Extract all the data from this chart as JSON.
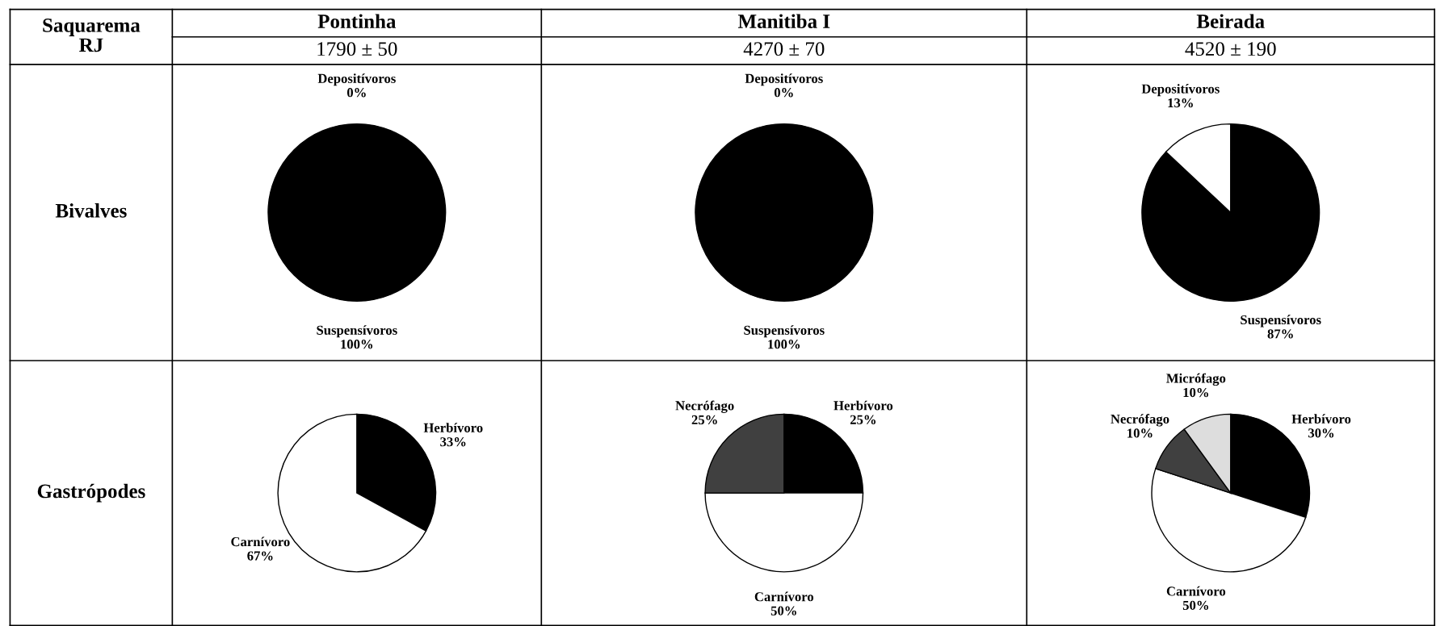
{
  "chart_data": [
    {
      "type": "pie",
      "title": "Pontinha",
      "subtitle": "1790 ± 50",
      "ylabel": "Bivalves",
      "annotations": [
        "Saquarema\nRJ"
      ],
      "categories": [
        "Suspensívoros",
        "Depositívoros"
      ],
      "values": [
        100,
        0
      ],
      "value_labels": [
        "100%",
        "0%"
      ],
      "colors": [
        "#000000",
        "#ffffff"
      ]
    },
    {
      "type": "pie",
      "title": "Manitiba I",
      "subtitle": "4270 ± 70",
      "categories": [
        "Suspensívoros",
        "Depositívoros"
      ],
      "values": [
        100,
        0
      ],
      "value_labels": [
        "100%",
        "0%"
      ],
      "colors": [
        "#000000",
        "#ffffff"
      ]
    },
    {
      "type": "pie",
      "title": "Beirada",
      "subtitle": "4520 ± 190",
      "categories": [
        "Suspensívoros",
        "Depositívoros"
      ],
      "values": [
        87,
        13
      ],
      "value_labels": [
        "87%",
        "13%"
      ],
      "colors": [
        "#000000",
        "#ffffff"
      ]
    },
    {
      "type": "pie",
      "ylabel": "Gastrópodes",
      "categories": [
        "Herbívoro",
        "Carnívoro"
      ],
      "values": [
        33,
        67
      ],
      "value_labels": [
        "33%",
        "67%"
      ],
      "colors": [
        "#000000",
        "#ffffff"
      ]
    },
    {
      "type": "pie",
      "categories": [
        "Herbívoro",
        "Carnívoro",
        "Necrófago"
      ],
      "values": [
        25,
        50,
        25
      ],
      "value_labels": [
        "25%",
        "50%",
        "25%"
      ],
      "colors": [
        "#000000",
        "#ffffff",
        "#404040"
      ]
    },
    {
      "type": "pie",
      "categories": [
        "Herbívoro",
        "Carnívoro",
        "Necrófago",
        "Micrófago"
      ],
      "values": [
        30,
        50,
        10,
        10
      ],
      "value_labels": [
        "30%",
        "50%",
        "10%",
        "10%"
      ],
      "colors": [
        "#000000",
        "#ffffff",
        "#404040",
        "#dddddd"
      ]
    }
  ]
}
